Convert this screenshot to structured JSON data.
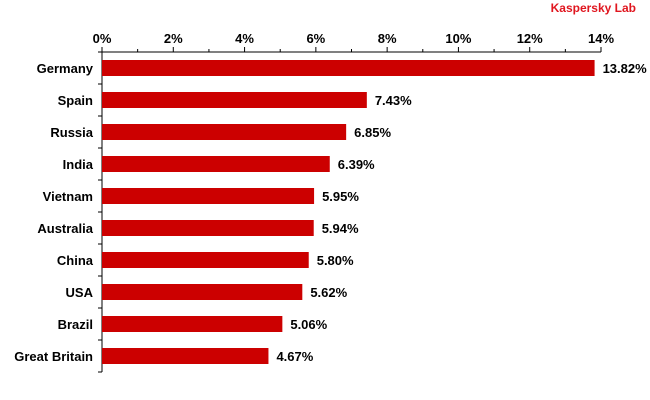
{
  "brand": {
    "label": "Kaspersky Lab",
    "color": "#e0161f"
  },
  "chart_data": {
    "type": "bar",
    "orientation": "horizontal",
    "title": "",
    "xlabel": "",
    "ylabel": "",
    "categories": [
      "Germany",
      "Spain",
      "Russia",
      "India",
      "Vietnam",
      "Australia",
      "China",
      "USA",
      "Brazil",
      "Great Britain"
    ],
    "values": [
      13.82,
      7.43,
      6.85,
      6.39,
      5.95,
      5.94,
      5.8,
      5.62,
      5.06,
      4.67
    ],
    "value_labels": [
      "13.82%",
      "7.43%",
      "6.85%",
      "6.39%",
      "5.95%",
      "5.94%",
      "5.80%",
      "5.62%",
      "5.06%",
      "4.67%"
    ],
    "xlim": [
      0,
      14
    ],
    "x_ticks": [
      0,
      2,
      4,
      6,
      8,
      10,
      12,
      14
    ],
    "x_tick_labels": [
      "0%",
      "2%",
      "4%",
      "6%",
      "8%",
      "10%",
      "12%",
      "14%"
    ],
    "axis_position": "top",
    "grid": false,
    "bar_color": "#cc0000"
  }
}
